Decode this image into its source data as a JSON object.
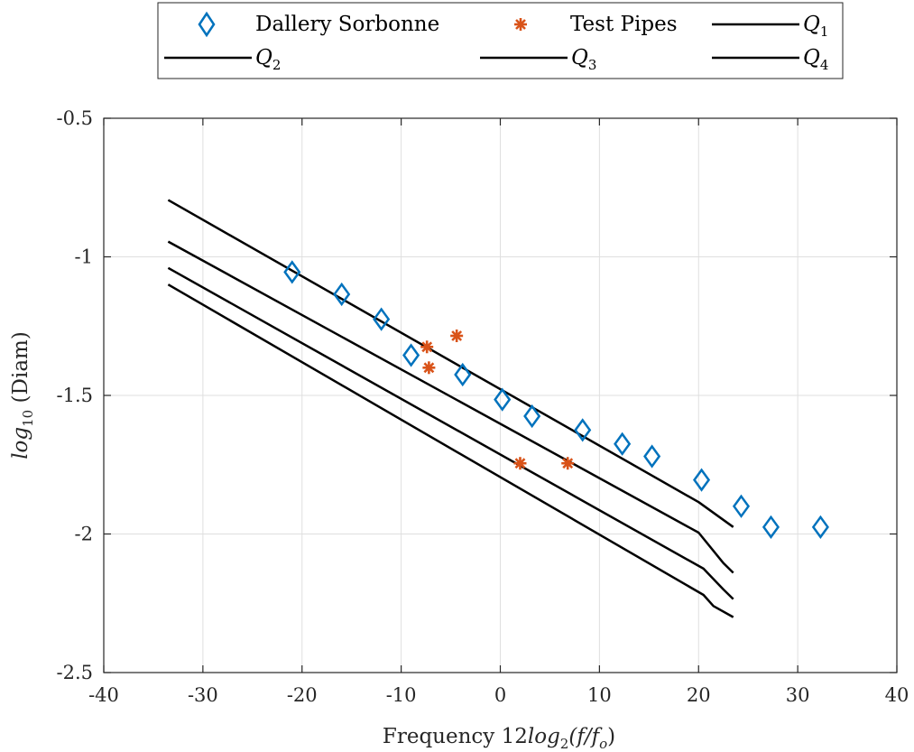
{
  "colors": {
    "dallery": "#0072BD",
    "test": "#D95319",
    "curves": "#000000",
    "grid": "#DFDFDF",
    "axis": "#262626"
  },
  "chart_data": {
    "type": "scatter",
    "xlim": [
      -40,
      40
    ],
    "ylim": [
      -2.5,
      -0.5
    ],
    "xticks": [
      -40,
      -30,
      -20,
      -10,
      0,
      10,
      20,
      30,
      40
    ],
    "yticks": [
      -2.5,
      -2,
      -1.5,
      -1,
      -0.5
    ],
    "xtick_labels": [
      "-40",
      "-30",
      "-20",
      "-10",
      "0",
      "10",
      "20",
      "30",
      "40"
    ],
    "ytick_labels": [
      "-2.5",
      "-2",
      "-1.5",
      "-1",
      "-0.5"
    ],
    "grid": true,
    "legend_position": "top-outside",
    "xlabel": {
      "plain": "Frequency 12",
      "math": "log",
      "sub": "2",
      "rest": "(f/f",
      "sub2": "o",
      "close": ")"
    },
    "ylabel": {
      "math": "log",
      "sub": "10",
      "plain": " (Diam)"
    },
    "series": [
      {
        "name": "Dallery Sorbonne",
        "kind": "markers",
        "marker": "diamond",
        "color": "#0072BD",
        "x": [
          -21,
          -16,
          -12,
          -9,
          -3.8,
          0.2,
          3.2,
          8.3,
          12.3,
          15.3,
          20.3,
          24.3,
          27.3,
          32.3
        ],
        "y": [
          -1.055,
          -1.135,
          -1.225,
          -1.355,
          -1.425,
          -1.515,
          -1.575,
          -1.625,
          -1.675,
          -1.72,
          -1.805,
          -1.9,
          -1.975,
          -1.975
        ]
      },
      {
        "name": "Test Pipes",
        "kind": "markers",
        "marker": "asterisk",
        "color": "#D95319",
        "x": [
          -7.4,
          -7.2,
          -4.4,
          2.0,
          6.8
        ],
        "y": [
          -1.325,
          -1.4,
          -1.285,
          -1.745,
          -1.745
        ]
      },
      {
        "name": "Q",
        "sub": "1",
        "kind": "line",
        "color": "#000000",
        "x": [
          -33.5,
          20,
          23.5
        ],
        "y": [
          -0.795,
          -1.885,
          -1.975
        ]
      },
      {
        "name": "Q",
        "sub": "2",
        "kind": "line",
        "color": "#000000",
        "x": [
          -33.5,
          20,
          22.5,
          23.5
        ],
        "y": [
          -0.945,
          -1.995,
          -2.105,
          -2.14
        ]
      },
      {
        "name": "Q",
        "sub": "3",
        "kind": "line",
        "color": "#000000",
        "x": [
          -33.5,
          20.5,
          22.5,
          23.5
        ],
        "y": [
          -1.04,
          -2.125,
          -2.2,
          -2.235
        ]
      },
      {
        "name": "Q",
        "sub": "4",
        "kind": "line",
        "color": "#000000",
        "x": [
          -33.5,
          20.5,
          21.5,
          23.5
        ],
        "y": [
          -1.1,
          -2.22,
          -2.26,
          -2.3
        ]
      }
    ]
  }
}
